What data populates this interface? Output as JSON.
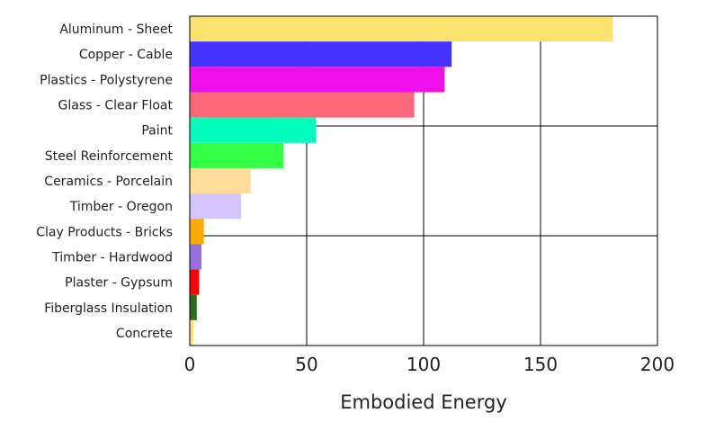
{
  "chart_data": {
    "type": "bar",
    "orientation": "horizontal",
    "categories": [
      "Aluminum - Sheet",
      "Copper - Cable",
      "Plastics - Polystyrene",
      "Glass - Clear Float",
      "Paint",
      "Steel Reinforcement",
      "Ceramics - Porcelain",
      "Timber - Oregon",
      "Clay Products - Bricks",
      "Timber - Hardwood",
      "Plaster - Gypsum",
      "Fiberglass Insulation",
      "Concrete"
    ],
    "values": [
      181,
      112,
      109,
      96,
      54,
      40,
      26,
      22,
      6,
      5,
      4,
      3,
      1.5
    ],
    "colors": [
      "#fde26f",
      "#4433ff",
      "#ee11ee",
      "#ff6677",
      "#00ffbb",
      "#33ff44",
      "#ffdd99",
      "#d5c5ff",
      "#ffaa00",
      "#9370db",
      "#ff0000",
      "#2e6b1e",
      "#fde26f"
    ],
    "xlabel": "Embodied Energy",
    "ylabel": "",
    "xlim": [
      0,
      200
    ],
    "xticks": [
      0,
      50,
      100,
      150,
      200
    ],
    "grid": true
  }
}
